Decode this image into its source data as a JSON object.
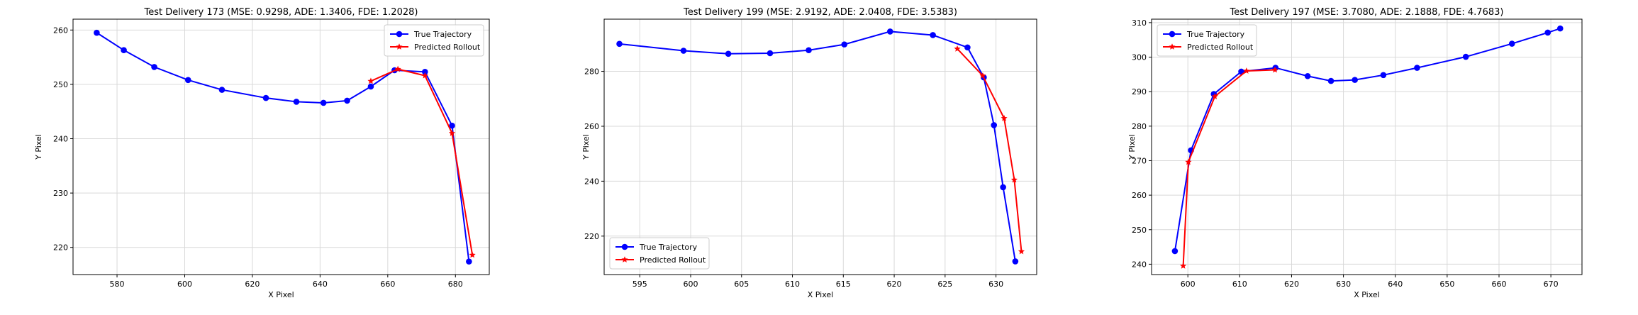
{
  "chart_data": [
    {
      "type": "line",
      "title": "Test Delivery 173 (MSE: 0.9298, ADE: 1.3406, FDE: 1.2028)",
      "xlabel": "X Pixel",
      "ylabel": "Y Pixel",
      "xlim": [
        567,
        690
      ],
      "ylim": [
        215,
        262
      ],
      "xticks": [
        580,
        600,
        620,
        640,
        660,
        680
      ],
      "yticks": [
        220,
        230,
        240,
        250,
        260
      ],
      "grid": true,
      "legend_position": "top-right",
      "series": [
        {
          "name": "True Trajectory",
          "color": "#0000ff",
          "marker": "circle",
          "points": [
            [
              574,
              259.5
            ],
            [
              582,
              256.3
            ],
            [
              591,
              253.2
            ],
            [
              601,
              250.8
            ],
            [
              611,
              249.0
            ],
            [
              624,
              247.5
            ],
            [
              633,
              246.8
            ],
            [
              641,
              246.6
            ],
            [
              648,
              247.0
            ],
            [
              655,
              249.6
            ],
            [
              662,
              252.6
            ],
            [
              671,
              252.3
            ],
            [
              679,
              242.4
            ],
            [
              684,
              217.4
            ]
          ]
        },
        {
          "name": "Predicted Rollout",
          "color": "#ff0000",
          "marker": "star",
          "points": [
            [
              655,
              250.6
            ],
            [
              663,
              252.8
            ],
            [
              671,
              251.6
            ],
            [
              679,
              241.0
            ],
            [
              685,
              218.6
            ]
          ]
        }
      ]
    },
    {
      "type": "line",
      "title": "Test Delivery 199 (MSE: 2.9192, ADE: 2.0408, FDE: 3.5383)",
      "xlabel": "X Pixel",
      "ylabel": "Y Pixel",
      "xlim": [
        591.5,
        634
      ],
      "ylim": [
        206,
        299
      ],
      "xticks": [
        595,
        600,
        605,
        610,
        615,
        620,
        625,
        630
      ],
      "yticks": [
        220,
        240,
        260,
        280
      ],
      "grid": true,
      "legend_position": "bottom-left",
      "series": [
        {
          "name": "True Trajectory",
          "color": "#0000ff",
          "marker": "circle",
          "points": [
            [
              593,
              290
            ],
            [
              599.3,
              287.5
            ],
            [
              603.7,
              286.4
            ],
            [
              607.8,
              286.6
            ],
            [
              611.6,
              287.7
            ],
            [
              615.1,
              289.8
            ],
            [
              619.6,
              294.5
            ],
            [
              623.8,
              293.2
            ],
            [
              627.2,
              288.7
            ],
            [
              628.8,
              277.8
            ],
            [
              629.8,
              260.4
            ],
            [
              630.7,
              237.8
            ],
            [
              631.9,
              210.8
            ]
          ]
        },
        {
          "name": "Predicted Rollout",
          "color": "#ff0000",
          "marker": "star",
          "points": [
            [
              626.2,
              288.2
            ],
            [
              628.7,
              278.4
            ],
            [
              630.8,
              262.9
            ],
            [
              631.8,
              240.5
            ],
            [
              632.5,
              214.4
            ]
          ]
        }
      ]
    },
    {
      "type": "line",
      "title": "Test Delivery 197 (MSE: 3.7080, ADE: 2.1888, FDE: 4.7683)",
      "xlabel": "X Pixel",
      "ylabel": "Y Pixel",
      "xlim": [
        593,
        676
      ],
      "ylim": [
        237,
        311
      ],
      "xticks": [
        600,
        610,
        620,
        630,
        640,
        650,
        660,
        670
      ],
      "yticks": [
        240,
        250,
        260,
        270,
        280,
        290,
        300,
        310
      ],
      "grid": true,
      "legend_position": "top-left",
      "series": [
        {
          "name": "True Trajectory",
          "color": "#0000ff",
          "marker": "circle",
          "points": [
            [
              597.5,
              243.8
            ],
            [
              600.6,
              273
            ],
            [
              605,
              289.3
            ],
            [
              610.3,
              295.8
            ],
            [
              616.9,
              296.9
            ],
            [
              623.1,
              294.5
            ],
            [
              627.6,
              293.1
            ],
            [
              632.2,
              293.4
            ],
            [
              637.7,
              294.8
            ],
            [
              644.2,
              296.9
            ],
            [
              653.6,
              300.1
            ],
            [
              662.5,
              303.9
            ],
            [
              669.4,
              307.1
            ],
            [
              671.8,
              308.3
            ]
          ]
        },
        {
          "name": "Predicted Rollout",
          "color": "#ff0000",
          "marker": "star",
          "points": [
            [
              599.1,
              239.5
            ],
            [
              600.1,
              269.6
            ],
            [
              605.2,
              288.6
            ],
            [
              611.3,
              296.0
            ],
            [
              616.8,
              296.3
            ]
          ]
        }
      ]
    }
  ]
}
